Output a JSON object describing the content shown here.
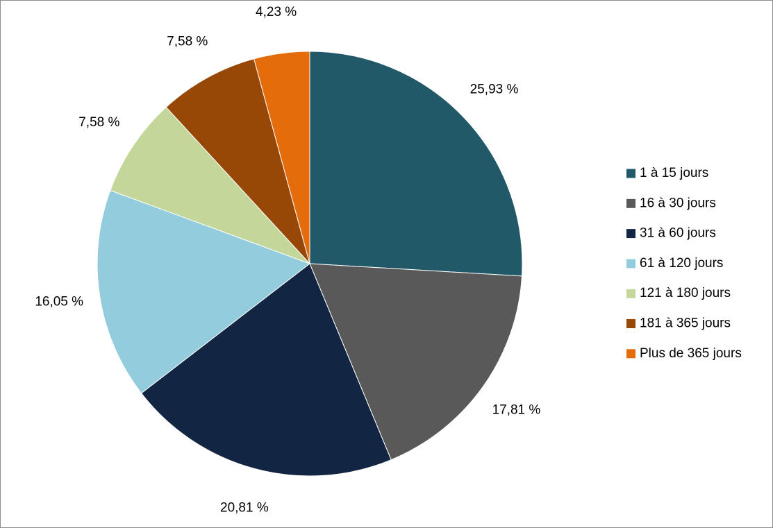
{
  "chart_data": {
    "type": "pie",
    "title": "",
    "legend_position": "right",
    "start_angle_deg": 0,
    "direction": "clockwise",
    "categories": [
      "1 à 15 jours",
      "16 à 30 jours",
      "31 à 60 jours",
      "61 à 120 jours",
      "121 à 180 jours",
      "181 à 365 jours",
      "Plus de 365 jours"
    ],
    "values": [
      25.93,
      17.81,
      20.81,
      16.05,
      7.58,
      7.58,
      4.23
    ],
    "labels": [
      "25,93 %",
      "17,81 %",
      "20,81 %",
      "16,05 %",
      "7,58 %",
      "7,58 %",
      "4,23 %"
    ],
    "colors": [
      "#215968",
      "#595959",
      "#122542",
      "#93cddd",
      "#c4d79b",
      "#974806",
      "#e46c0a"
    ]
  }
}
